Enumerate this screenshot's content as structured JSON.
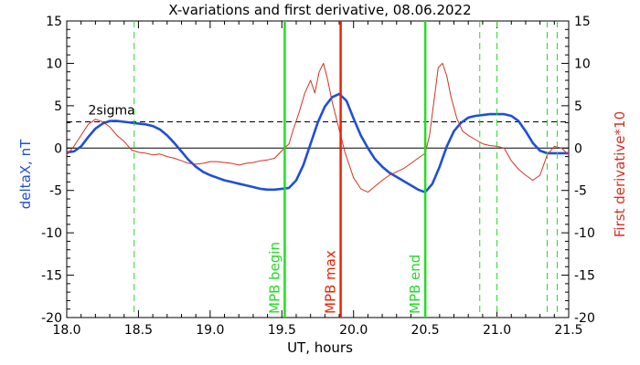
{
  "chart_data": {
    "type": "line",
    "title": "X-variations and first derivative, 08.06.2022",
    "xlabel": "UT, hours",
    "ylabel_left": "deltaX, nT",
    "ylabel_right": "First derivative*10",
    "xlim": [
      18.0,
      21.5
    ],
    "ylim": [
      -20,
      15
    ],
    "xticks": [
      "18.0",
      "18.5",
      "19.0",
      "19.5",
      "20.0",
      "20.5",
      "21.0",
      "21.5"
    ],
    "yticks": [
      "-20",
      "-15",
      "-10",
      "-5",
      "0",
      "5",
      "10",
      "15"
    ],
    "colors": {
      "deltaX": "#1f4fd8",
      "derivative": "#d7301f",
      "marker_green": "#22dd22",
      "marker_red": "#ee2200"
    },
    "threshold": {
      "label": "2sigma",
      "value": 3.1,
      "label_x": 18.15
    },
    "zero_line": 0,
    "markers": [
      {
        "x": 19.52,
        "label": "MPB begin",
        "color": "#22dd22"
      },
      {
        "x": 19.91,
        "label": "MPB max",
        "color": "#ee2200"
      },
      {
        "x": 20.5,
        "label": "MPB end",
        "color": "#22dd22"
      }
    ],
    "dashed_markers": [
      18.47,
      20.88,
      21.0,
      21.35,
      21.42
    ],
    "series": [
      {
        "key": "deltaX",
        "x": [
          18.0,
          18.05,
          18.1,
          18.15,
          18.2,
          18.25,
          18.3,
          18.35,
          18.4,
          18.45,
          18.5,
          18.55,
          18.6,
          18.65,
          18.7,
          18.75,
          18.8,
          18.85,
          18.9,
          18.95,
          19.0,
          19.05,
          19.1,
          19.15,
          19.2,
          19.25,
          19.3,
          19.35,
          19.4,
          19.45,
          19.5,
          19.55,
          19.6,
          19.65,
          19.7,
          19.75,
          19.8,
          19.85,
          19.9,
          19.95,
          20.0,
          20.05,
          20.1,
          20.15,
          20.2,
          20.25,
          20.3,
          20.35,
          20.4,
          20.45,
          20.5,
          20.55,
          20.6,
          20.65,
          20.7,
          20.75,
          20.8,
          20.85,
          20.9,
          20.95,
          21.0,
          21.05,
          21.1,
          21.15,
          21.2,
          21.25,
          21.3,
          21.35,
          21.4,
          21.45,
          21.5
        ],
        "y": [
          -0.5,
          -0.4,
          0.2,
          1.3,
          2.3,
          2.9,
          3.2,
          3.2,
          3.1,
          3.0,
          2.9,
          2.8,
          2.6,
          2.2,
          1.5,
          0.6,
          -0.4,
          -1.4,
          -2.2,
          -2.8,
          -3.2,
          -3.5,
          -3.8,
          -4.0,
          -4.2,
          -4.4,
          -4.6,
          -4.8,
          -4.9,
          -4.9,
          -4.8,
          -4.7,
          -3.8,
          -2.0,
          0.5,
          3.0,
          4.9,
          6.0,
          6.4,
          5.6,
          3.5,
          1.5,
          0.0,
          -1.3,
          -2.2,
          -2.9,
          -3.4,
          -3.9,
          -4.4,
          -4.9,
          -5.2,
          -4.2,
          -2.2,
          0.2,
          2.0,
          3.0,
          3.6,
          3.8,
          3.9,
          4.0,
          4.0,
          4.0,
          3.8,
          3.2,
          2.0,
          0.6,
          -0.3,
          -0.6,
          -0.6,
          -0.6,
          -0.6
        ]
      },
      {
        "key": "derivative",
        "x": [
          18.0,
          18.05,
          18.1,
          18.15,
          18.2,
          18.25,
          18.3,
          18.35,
          18.4,
          18.45,
          18.5,
          18.55,
          18.6,
          18.65,
          18.7,
          18.75,
          18.8,
          18.85,
          18.9,
          18.95,
          19.0,
          19.05,
          19.1,
          19.15,
          19.2,
          19.25,
          19.3,
          19.35,
          19.4,
          19.45,
          19.5,
          19.55,
          19.58,
          19.62,
          19.66,
          19.7,
          19.73,
          19.76,
          19.79,
          19.82,
          19.85,
          19.88,
          19.91,
          19.94,
          19.97,
          20.0,
          20.05,
          20.1,
          20.15,
          20.2,
          20.25,
          20.3,
          20.35,
          20.4,
          20.45,
          20.5,
          20.53,
          20.56,
          20.59,
          20.62,
          20.65,
          20.68,
          20.72,
          20.76,
          20.8,
          20.85,
          20.9,
          20.95,
          21.0,
          21.05,
          21.1,
          21.15,
          21.2,
          21.25,
          21.3,
          21.35,
          21.4,
          21.45,
          21.5
        ],
        "y": [
          -0.8,
          0.2,
          1.5,
          2.8,
          3.4,
          3.1,
          2.5,
          1.5,
          0.8,
          -0.2,
          -0.5,
          -0.6,
          -0.8,
          -0.7,
          -1.0,
          -1.2,
          -1.5,
          -1.8,
          -1.9,
          -1.8,
          -1.6,
          -1.6,
          -1.7,
          -1.8,
          -2.0,
          -1.8,
          -1.7,
          -1.5,
          -1.4,
          -1.2,
          -0.3,
          0.5,
          2.2,
          4.2,
          6.5,
          8.0,
          6.5,
          9.0,
          10.0,
          8.0,
          5.5,
          3.5,
          1.5,
          -0.5,
          -2.0,
          -3.5,
          -4.8,
          -5.2,
          -4.5,
          -3.8,
          -3.2,
          -2.8,
          -2.4,
          -1.8,
          -1.2,
          -0.6,
          1.5,
          5.5,
          9.5,
          10.0,
          8.5,
          6.0,
          3.5,
          2.0,
          1.5,
          1.0,
          0.5,
          0.3,
          0.2,
          0.0,
          -1.5,
          -2.5,
          -3.2,
          -3.8,
          -3.2,
          -0.8,
          0.2,
          0.0,
          -0.8
        ]
      }
    ]
  }
}
